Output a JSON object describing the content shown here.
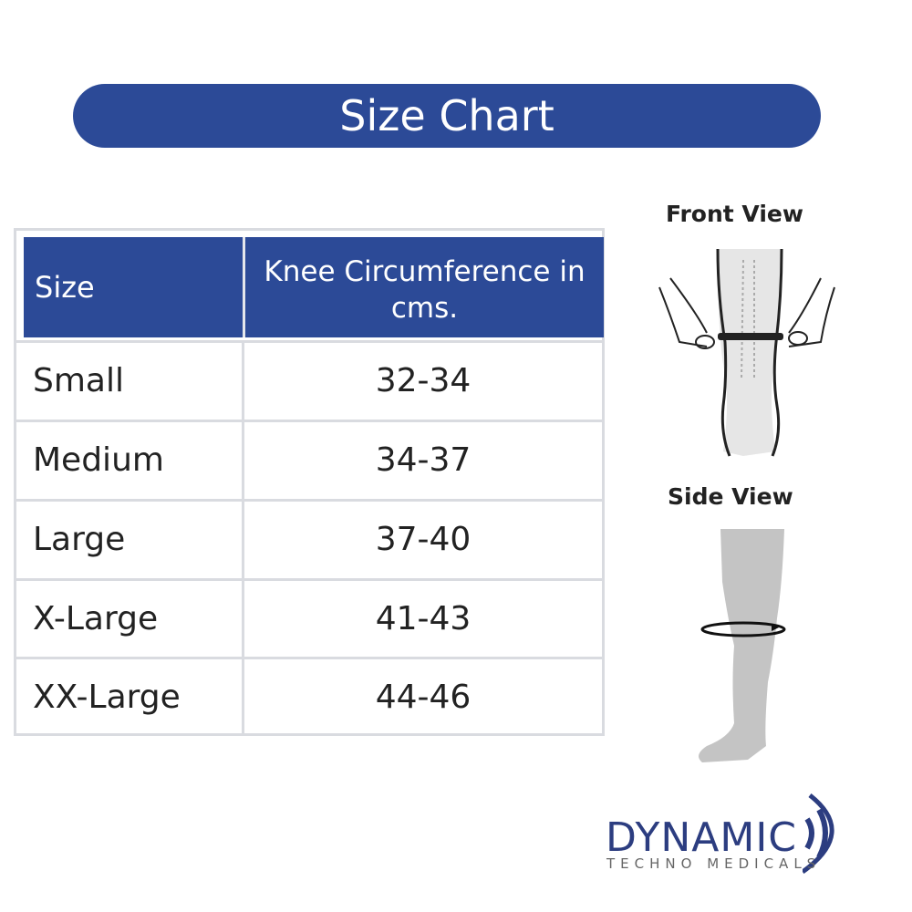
{
  "title": "Size Chart",
  "table": {
    "headers": [
      "Size",
      "Knee Circumference in cms."
    ],
    "rows": [
      {
        "size": "Small",
        "value": "32-34"
      },
      {
        "size": "Medium",
        "value": "34-37"
      },
      {
        "size": "Large",
        "value": "37-40"
      },
      {
        "size": "X-Large",
        "value": "41-43"
      },
      {
        "size": "XX-Large",
        "value": "44-46"
      }
    ]
  },
  "illustrations": {
    "front_label": "Front View",
    "side_label": "Side View"
  },
  "logo": {
    "name": "DYNAMIC",
    "tagline": "TECHNO MEDICALS"
  },
  "colors": {
    "brand_blue": "#2c4a97",
    "border": "#d9dbe0"
  }
}
